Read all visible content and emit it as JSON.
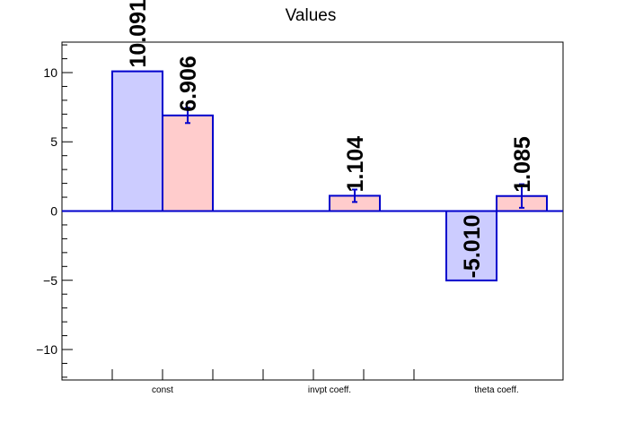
{
  "chart_data": {
    "type": "bar",
    "title": "Values",
    "categories": [
      "const",
      "invpt coeff.",
      "theta coeff."
    ],
    "ylim": [
      -12.2,
      12.2
    ],
    "yticks": [
      -10,
      -5,
      0,
      5,
      10
    ],
    "ytick_labels": [
      "−10",
      "−5",
      "0",
      "5",
      "10"
    ],
    "series": [
      {
        "values": [
          10.091,
          0,
          -5.01
        ],
        "labels": [
          "10.091",
          "",
          "-5.010"
        ],
        "fill": "#ccccff",
        "errors": [
          0,
          0,
          0
        ]
      },
      {
        "values": [
          6.906,
          1.104,
          1.085
        ],
        "labels": [
          "6.906",
          "1.104",
          "1.085"
        ],
        "fill": "#ffcccc",
        "errors": [
          0.55,
          0.45,
          0.85
        ]
      }
    ],
    "bar_stroke": "#0000cc",
    "grid": false,
    "legend": "none"
  }
}
